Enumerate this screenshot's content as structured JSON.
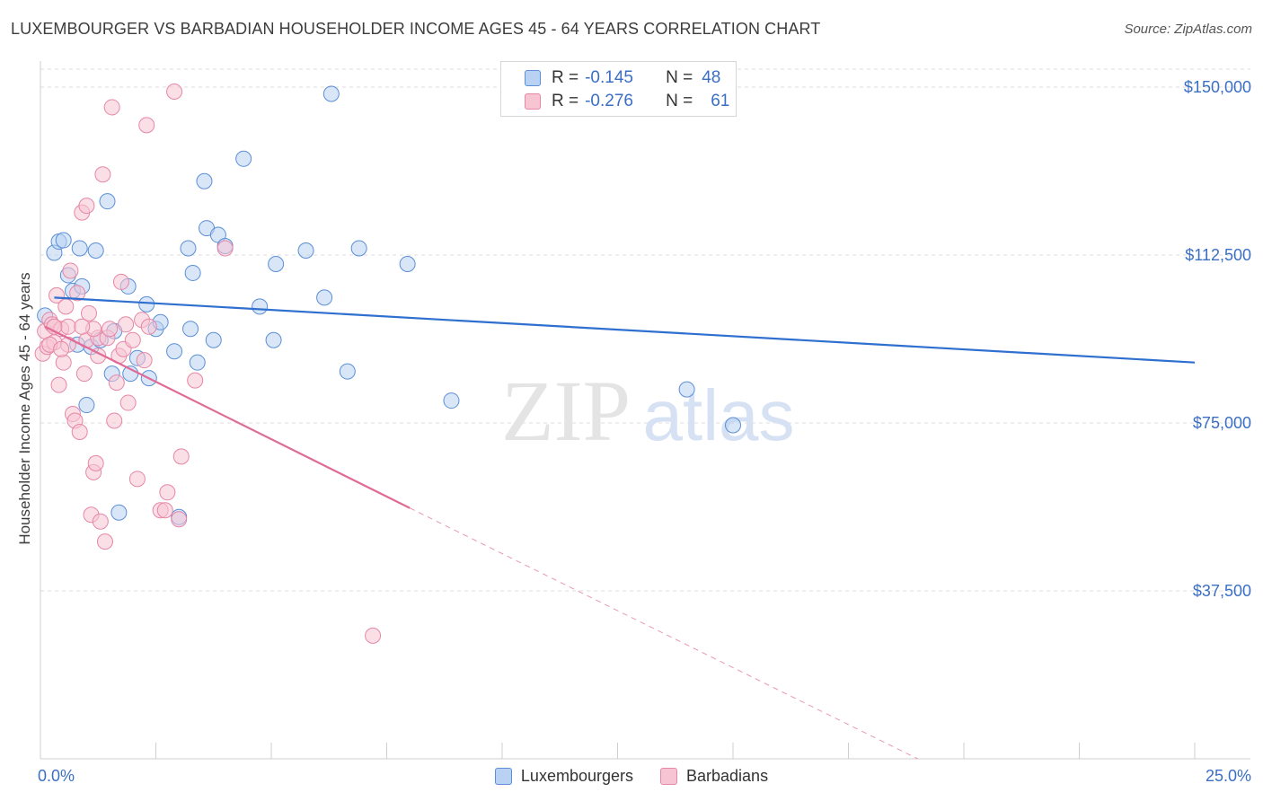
{
  "title": "LUXEMBOURGER VS BARBADIAN HOUSEHOLDER INCOME AGES 45 - 64 YEARS CORRELATION CHART",
  "source": "Source: ZipAtlas.com",
  "watermark": {
    "zip": "ZIP",
    "atlas": "atlas"
  },
  "colors": {
    "blue_fill": "#b9d1f2",
    "blue_stroke": "#5b8fd6",
    "blue_line": "#2e6fcf",
    "pink_fill": "#f7c4d4",
    "pink_stroke": "#e687a6",
    "pink_line": "#e06b96",
    "axis_text": "#3b6fc4",
    "grid": "#dcdcdc"
  },
  "legend": {
    "rows": [
      {
        "r_label": "R =",
        "r_value": "-0.145",
        "n_label": "N =",
        "n_value": "48"
      },
      {
        "r_label": "R =",
        "r_value": "-0.276",
        "n_label": "N =",
        "n_value": "61"
      }
    ]
  },
  "bottom_legend": {
    "series1": "Luxembourgers",
    "series2": "Barbadians"
  },
  "chart_data": {
    "type": "scatter",
    "title": "LUXEMBOURGER VS BARBADIAN HOUSEHOLDER INCOME AGES 45 - 64 YEARS CORRELATION CHART",
    "xlabel": "",
    "ylabel": "Householder Income Ages 45 - 64 years",
    "xlim": [
      0,
      25
    ],
    "ylim": [
      0,
      157000
    ],
    "x_tick_labels": [
      "0.0%",
      "25.0%"
    ],
    "y_ticks": [
      37500,
      75000,
      112500,
      150000
    ],
    "y_tick_labels": [
      "$37,500",
      "$75,000",
      "$112,500",
      "$150,000"
    ],
    "series": [
      {
        "name": "Luxembourgers",
        "r": -0.145,
        "n": 48,
        "trend": {
          "x0": 0.3,
          "y0": 103000,
          "x1": 25.0,
          "y1": 88500
        },
        "points": [
          [
            0.1,
            99000
          ],
          [
            0.3,
            113000
          ],
          [
            0.4,
            115500
          ],
          [
            0.5,
            115800
          ],
          [
            0.6,
            108000
          ],
          [
            0.7,
            104500
          ],
          [
            0.8,
            92500
          ],
          [
            0.85,
            114000
          ],
          [
            0.9,
            105500
          ],
          [
            1.0,
            79000
          ],
          [
            1.1,
            92000
          ],
          [
            1.2,
            113500
          ],
          [
            1.3,
            93500
          ],
          [
            1.45,
            124500
          ],
          [
            1.55,
            86000
          ],
          [
            1.6,
            95500
          ],
          [
            1.7,
            55000
          ],
          [
            1.9,
            105500
          ],
          [
            1.95,
            86000
          ],
          [
            2.1,
            89500
          ],
          [
            2.3,
            101500
          ],
          [
            2.35,
            85000
          ],
          [
            2.5,
            96000
          ],
          [
            2.6,
            97500
          ],
          [
            2.9,
            91000
          ],
          [
            3.2,
            114000
          ],
          [
            3.25,
            96000
          ],
          [
            3.3,
            108500
          ],
          [
            3.4,
            88500
          ],
          [
            3.55,
            129000
          ],
          [
            3.6,
            118500
          ],
          [
            3.75,
            93500
          ],
          [
            3.85,
            117000
          ],
          [
            4.0,
            114500
          ],
          [
            4.4,
            134000
          ],
          [
            4.75,
            101000
          ],
          [
            5.05,
            93500
          ],
          [
            5.1,
            110500
          ],
          [
            5.75,
            113500
          ],
          [
            6.15,
            103000
          ],
          [
            6.3,
            148500
          ],
          [
            6.65,
            86500
          ],
          [
            6.9,
            114000
          ],
          [
            7.95,
            110500
          ],
          [
            8.9,
            80000
          ],
          [
            14.0,
            82500
          ],
          [
            15.0,
            74500
          ],
          [
            3.0,
            54000
          ]
        ]
      },
      {
        "name": "Barbadians",
        "r": -0.276,
        "n": 61,
        "trend": {
          "x0": 0.1,
          "y0": 96500,
          "x1": 8.0,
          "y1": 56000
        },
        "trend_dashed": {
          "x0": 8.0,
          "y0": 56000,
          "x1": 19.0,
          "y1": 0
        },
        "points": [
          [
            0.05,
            90500
          ],
          [
            0.1,
            95500
          ],
          [
            0.15,
            92000
          ],
          [
            0.2,
            98000
          ],
          [
            0.25,
            97000
          ],
          [
            0.3,
            93000
          ],
          [
            0.35,
            103500
          ],
          [
            0.4,
            83500
          ],
          [
            0.45,
            96000
          ],
          [
            0.5,
            88500
          ],
          [
            0.55,
            101000
          ],
          [
            0.6,
            96500
          ],
          [
            0.65,
            109000
          ],
          [
            0.7,
            77000
          ],
          [
            0.75,
            75500
          ],
          [
            0.8,
            104000
          ],
          [
            0.85,
            73000
          ],
          [
            0.9,
            122000
          ],
          [
            0.95,
            86000
          ],
          [
            1.0,
            93500
          ],
          [
            1.05,
            99500
          ],
          [
            1.1,
            54500
          ],
          [
            1.15,
            64000
          ],
          [
            1.2,
            66000
          ],
          [
            1.25,
            94000
          ],
          [
            1.3,
            53000
          ],
          [
            1.35,
            130500
          ],
          [
            1.4,
            48500
          ],
          [
            1.45,
            94000
          ],
          [
            1.5,
            96000
          ],
          [
            1.55,
            145500
          ],
          [
            1.6,
            75500
          ],
          [
            1.65,
            84000
          ],
          [
            1.7,
            90000
          ],
          [
            1.75,
            106500
          ],
          [
            1.8,
            91500
          ],
          [
            1.85,
            97000
          ],
          [
            1.9,
            79500
          ],
          [
            2.0,
            93500
          ],
          [
            2.1,
            62500
          ],
          [
            2.2,
            98000
          ],
          [
            2.25,
            89000
          ],
          [
            2.3,
            141500
          ],
          [
            2.35,
            96500
          ],
          [
            2.6,
            55500
          ],
          [
            2.7,
            55500
          ],
          [
            2.75,
            59500
          ],
          [
            2.9,
            149000
          ],
          [
            3.0,
            53500
          ],
          [
            3.05,
            67500
          ],
          [
            3.35,
            84500
          ],
          [
            4.0,
            114000
          ],
          [
            7.2,
            27500
          ],
          [
            1.0,
            123500
          ],
          [
            0.6,
            92500
          ],
          [
            0.3,
            96500
          ],
          [
            0.2,
            92500
          ],
          [
            1.15,
            96000
          ],
          [
            0.9,
            96500
          ],
          [
            0.45,
            91500
          ],
          [
            1.25,
            90000
          ]
        ]
      }
    ]
  }
}
